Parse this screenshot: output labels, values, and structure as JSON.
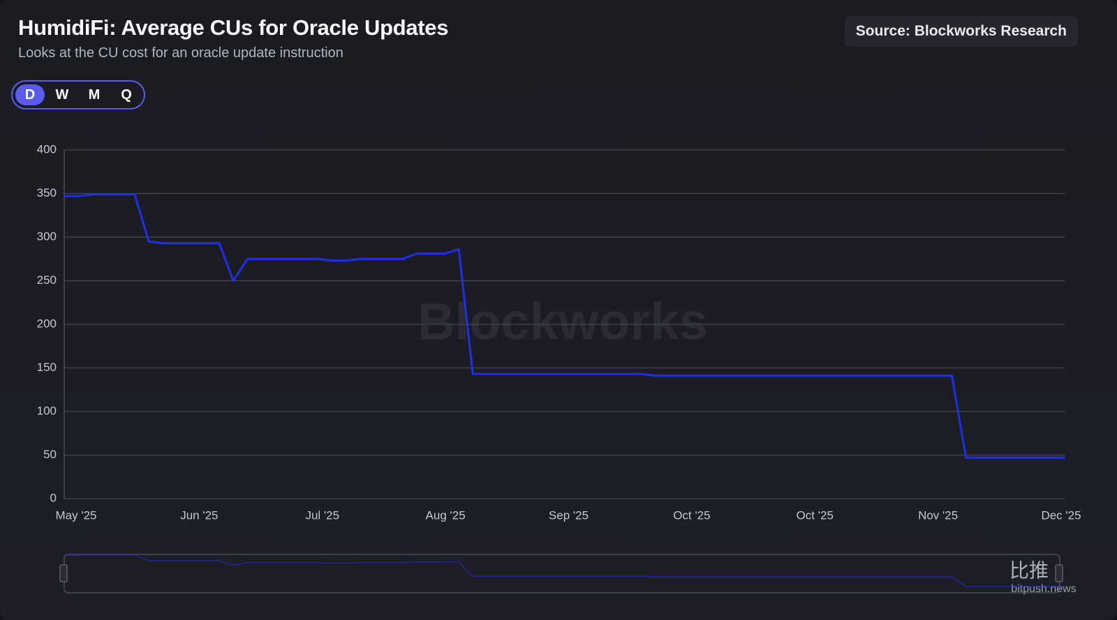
{
  "header": {
    "title": "HumidiFi: Average CUs for Oracle Updates",
    "subtitle": "Looks at the CU cost for an oracle update instruction",
    "source": "Source: Blockworks Research"
  },
  "controls": {
    "periods": [
      "D",
      "W",
      "M",
      "Q"
    ],
    "active": "D"
  },
  "watermarks": {
    "brand": "Blockworks",
    "cn": "比推",
    "site": "bitpush.news"
  },
  "chart_data": {
    "type": "line",
    "x_tick_labels": [
      "May '25",
      "Jun '25",
      "Jul '25",
      "Aug '25",
      "Sep '25",
      "Oct '25",
      "Oct '25",
      "Nov '25",
      "Dec '25"
    ],
    "values": [
      347,
      347,
      349,
      349,
      349,
      349,
      295,
      293,
      293,
      293,
      293,
      293,
      250,
      275,
      275,
      275,
      275,
      275,
      275,
      273,
      273,
      275,
      275,
      275,
      275,
      281,
      281,
      281,
      286,
      143,
      143,
      143,
      143,
      143,
      143,
      143,
      143,
      143,
      143,
      143,
      143,
      143,
      141,
      141,
      141,
      141,
      141,
      141,
      141,
      141,
      141,
      141,
      141,
      141,
      141,
      141,
      141,
      141,
      141,
      141,
      141,
      141,
      141,
      141,
      47,
      47,
      47,
      47,
      47,
      47,
      47,
      47
    ],
    "color": "#1f2fe6",
    "ylim": [
      0,
      400
    ],
    "yticks": [
      0,
      50,
      100,
      150,
      200,
      250,
      300,
      350,
      400
    ],
    "grid": true
  }
}
